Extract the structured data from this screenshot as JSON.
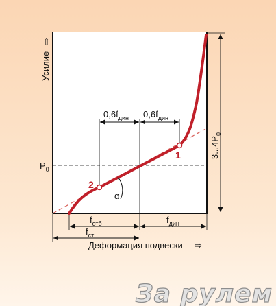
{
  "diagram": {
    "y_axis_label": "Усилие",
    "x_axis_label": "Деформация подвески",
    "p0": {
      "main": "P",
      "sub": "0"
    },
    "load_range": {
      "main": "3...4P",
      "sub": "0"
    },
    "dim_upper_left": {
      "main": "0,6f",
      "sub": "дин"
    },
    "dim_upper_right": {
      "main": "0,6f",
      "sub": "дин"
    },
    "dim_f_otb": {
      "main": "f",
      "sub": "отб"
    },
    "dim_f_din": {
      "main": "f",
      "sub": "дин"
    },
    "dim_f_st": {
      "main": "f",
      "sub": "ст"
    },
    "angle": "α",
    "point_1": "1",
    "point_2": "2",
    "colors": {
      "curve": "#c0202a",
      "dashed_tangent": "#d8605a",
      "axes": "#111111",
      "background_top": "#fbd8b8",
      "background_bottom": "#fff4e8"
    }
  },
  "watermark": "За рулем"
}
